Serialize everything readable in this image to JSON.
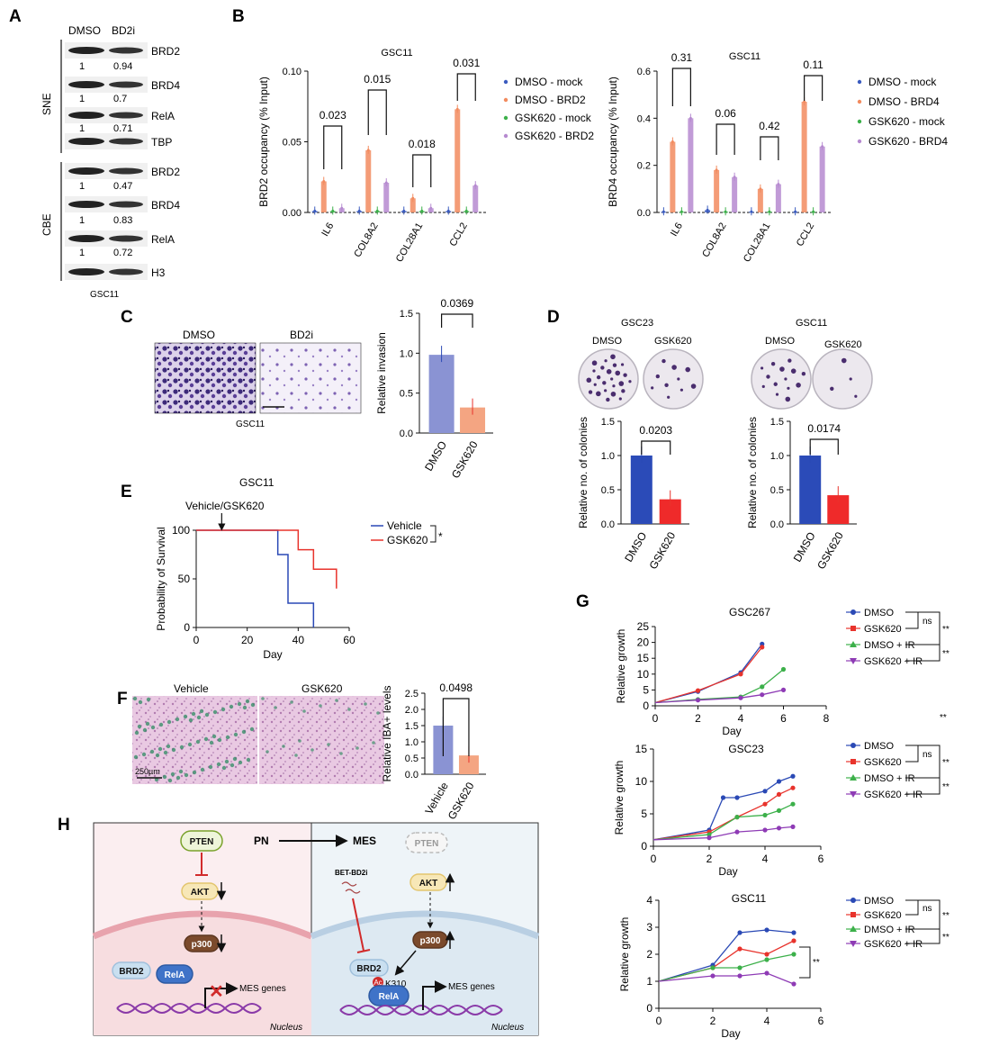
{
  "panel_labels": {
    "A": "A",
    "B": "B",
    "C": "C",
    "D": "D",
    "E": "E",
    "F": "F",
    "G": "G",
    "H": "H"
  },
  "panelA": {
    "conditions": [
      "DMSO",
      "BD2i"
    ],
    "sne_label": "SNE",
    "cbe_label": "CBE",
    "sne_proteins": [
      "BRD2",
      "BRD4",
      "RelA",
      "TBP"
    ],
    "sne_values": [
      [
        "1",
        "0.94"
      ],
      [
        "1",
        "0.7"
      ],
      [
        "1",
        "0.71"
      ]
    ],
    "cbe_proteins": [
      "BRD2",
      "BRD4",
      "RelA",
      "H3"
    ],
    "cbe_values": [
      [
        "1",
        "0.47"
      ],
      [
        "1",
        "0.83"
      ],
      [
        "1",
        "0.72"
      ]
    ],
    "cell_line": "GSC11"
  },
  "panelC": {
    "conditions": [
      "DMSO",
      "BD2i"
    ],
    "cell_line": "GSC11",
    "pvalue": "0.0369"
  },
  "panelD": {
    "left_title": "GSC23",
    "right_title": "GSC11",
    "conditions": [
      "DMSO",
      "GSK620"
    ],
    "left_pvalue": "0.0203",
    "right_pvalue": "0.0174"
  },
  "panelE": {
    "title": "GSC11",
    "arrow_label": "Vehicle/GSK620",
    "legend": [
      "Vehicle",
      "GSK620"
    ],
    "sig": "*"
  },
  "panelF": {
    "image_labels": [
      "Vehicle",
      "GSK620"
    ],
    "scalebar": "250µm",
    "pvalue": "0.0498"
  },
  "panelG": {
    "legend": [
      "DMSO",
      "GSK620",
      "DMSO + IR",
      "GSK620 + IR"
    ],
    "ns": "ns",
    "sig": "**"
  },
  "panelH": {
    "pn": "PN",
    "mes": "MES",
    "pten": "PTEN",
    "akt": "AKT",
    "p300": "p300",
    "brd2": "BRD2",
    "rela": "RelA",
    "bet": "BET-BD2i",
    "ac": "Ac",
    "k310": "K310",
    "mes_genes": "MES genes",
    "nucleus": "Nucleus"
  },
  "chart_data": [
    {
      "id": "B-left",
      "type": "bar",
      "title": "GSC11",
      "ylabel": "BRD2 occupancy (% Input)",
      "ylim": [
        0,
        0.1
      ],
      "yticks": [
        "0.00",
        "0.05",
        "0.10"
      ],
      "categories": [
        "IL6",
        "COL8A2",
        "COL28A1",
        "CCL2"
      ],
      "series": [
        {
          "name": "DMSO - mock",
          "color": "#3a5bbf",
          "values": [
            0.001,
            0.001,
            0.001,
            0.001
          ]
        },
        {
          "name": "DMSO - BRD2",
          "color": "#f28b5f",
          "values": [
            0.022,
            0.044,
            0.01,
            0.073
          ]
        },
        {
          "name": "GSK620 - mock",
          "color": "#3cb04a",
          "values": [
            0.001,
            0.001,
            0.001,
            0.001
          ]
        },
        {
          "name": "GSK620 - BRD2",
          "color": "#b68ad0",
          "values": [
            0.003,
            0.021,
            0.003,
            0.019
          ]
        }
      ],
      "pvalues": [
        "0.023",
        "0.015",
        "0.018",
        "0.031"
      ]
    },
    {
      "id": "B-right",
      "type": "bar",
      "title": "GSC11",
      "ylabel": "BRD4 occupancy (% Input)",
      "ylim": [
        0,
        0.6
      ],
      "yticks": [
        "0.0",
        "0.2",
        "0.4",
        "0.6"
      ],
      "categories": [
        "IL6",
        "COL8A2",
        "COL28A1",
        "CCL2"
      ],
      "series": [
        {
          "name": "DMSO - mock",
          "color": "#3a5bbf",
          "values": [
            0.003,
            0.01,
            0.003,
            0.003
          ]
        },
        {
          "name": "DMSO - BRD4",
          "color": "#f28b5f",
          "values": [
            0.3,
            0.18,
            0.1,
            0.47
          ]
        },
        {
          "name": "GSK620 - mock",
          "color": "#3cb04a",
          "values": [
            0.003,
            0.003,
            0.003,
            0.003
          ]
        },
        {
          "name": "GSK620 - BRD4",
          "color": "#b68ad0",
          "values": [
            0.4,
            0.15,
            0.12,
            0.28
          ]
        }
      ],
      "pvalues": [
        "0.31",
        "0.06",
        "0.42",
        "0.11"
      ]
    },
    {
      "id": "C-bar",
      "type": "bar",
      "ylabel": "Relative invasion",
      "ylim": [
        0,
        1.5
      ],
      "yticks": [
        "0.0",
        "0.5",
        "1.0",
        "1.5"
      ],
      "categories": [
        "DMSO",
        "GSK620"
      ],
      "values": [
        0.98,
        0.32
      ],
      "colors": [
        "#8a93d3",
        "#f4a582"
      ]
    },
    {
      "id": "D-left",
      "type": "bar",
      "ylabel": "Relative no. of colonies",
      "ylim": [
        0,
        1.5
      ],
      "yticks": [
        "0.0",
        "0.5",
        "1.0",
        "1.5"
      ],
      "categories": [
        "DMSO",
        "GSK620"
      ],
      "values": [
        1.0,
        0.36
      ],
      "colors": [
        "#2b4bb8",
        "#ef2a2a"
      ]
    },
    {
      "id": "D-right",
      "type": "bar",
      "ylabel": "Relative no. of colonies",
      "ylim": [
        0,
        1.5
      ],
      "yticks": [
        "0.0",
        "0.5",
        "1.0",
        "1.5"
      ],
      "categories": [
        "DMSO",
        "GSK620"
      ],
      "values": [
        1.0,
        0.42
      ],
      "colors": [
        "#2b4bb8",
        "#ef2a2a"
      ]
    },
    {
      "id": "E-survival",
      "type": "line",
      "xlabel": "Day",
      "ylabel": "Probability of Survival",
      "xlim": [
        0,
        60
      ],
      "ylim": [
        0,
        100
      ],
      "xticks": [
        "0",
        "20",
        "40",
        "60"
      ],
      "yticks": [
        "0",
        "50",
        "100"
      ],
      "series": [
        {
          "name": "Vehicle",
          "color": "#2a49b5",
          "x": [
            0,
            32,
            32,
            36,
            36,
            46,
            46
          ],
          "y": [
            100,
            100,
            75,
            75,
            25,
            25,
            0
          ]
        },
        {
          "name": "GSK620",
          "color": "#e8332c",
          "x": [
            0,
            40,
            40,
            46,
            46,
            55,
            55
          ],
          "y": [
            100,
            100,
            80,
            80,
            60,
            60,
            40
          ]
        }
      ]
    },
    {
      "id": "F-bar",
      "type": "bar",
      "ylabel": "Relative IBA+ levels",
      "ylim": [
        0,
        2.5
      ],
      "yticks": [
        "0.0",
        "0.5",
        "1.0",
        "1.5",
        "2.0",
        "2.5"
      ],
      "categories": [
        "Vehicle",
        "GSK620"
      ],
      "values": [
        1.5,
        0.58
      ],
      "colors": [
        "#8a93d3",
        "#f4a582"
      ]
    },
    {
      "id": "G-GSC267",
      "type": "line",
      "title": "GSC267",
      "xlabel": "Day",
      "ylabel": "Relative growth",
      "xlim": [
        0,
        8
      ],
      "ylim": [
        0,
        25
      ],
      "xticks": [
        "0",
        "2",
        "4",
        "6",
        "8"
      ],
      "yticks": [
        "0",
        "5",
        "10",
        "15",
        "20",
        "25"
      ],
      "series": [
        {
          "name": "DMSO",
          "color": "#2a49b5",
          "x": [
            0,
            2,
            4,
            5
          ],
          "y": [
            1,
            4.5,
            10.5,
            19.5
          ]
        },
        {
          "name": "GSK620",
          "color": "#e8332c",
          "x": [
            0,
            2,
            4,
            5
          ],
          "y": [
            1,
            4.8,
            10,
            18.5
          ]
        },
        {
          "name": "DMSO + IR",
          "color": "#3cb04a",
          "x": [
            0,
            2,
            4,
            5,
            6
          ],
          "y": [
            1,
            2,
            2.8,
            6,
            11.5
          ]
        },
        {
          "name": "GSK620 + IR",
          "color": "#8e3bb5",
          "x": [
            0,
            2,
            4,
            5,
            6
          ],
          "y": [
            1,
            1.8,
            2.5,
            3.5,
            5
          ]
        }
      ]
    },
    {
      "id": "G-GSC23",
      "type": "line",
      "title": "GSC23",
      "xlabel": "Day",
      "ylabel": "Relative growth",
      "xlim": [
        0,
        6
      ],
      "ylim": [
        0,
        15
      ],
      "xticks": [
        "0",
        "2",
        "4",
        "6"
      ],
      "yticks": [
        "0",
        "5",
        "10",
        "15"
      ],
      "series": [
        {
          "name": "DMSO",
          "color": "#2a49b5",
          "x": [
            0,
            2,
            2.5,
            3,
            4,
            4.5,
            5
          ],
          "y": [
            1,
            2.5,
            7.5,
            7.5,
            8.5,
            10,
            10.8
          ]
        },
        {
          "name": "GSK620",
          "color": "#e8332c",
          "x": [
            0,
            2,
            3,
            4,
            4.5,
            5
          ],
          "y": [
            1,
            2.2,
            4.5,
            6.5,
            8,
            9
          ]
        },
        {
          "name": "DMSO + IR",
          "color": "#3cb04a",
          "x": [
            0,
            2,
            3,
            4,
            4.5,
            5
          ],
          "y": [
            1,
            1.8,
            4.5,
            4.8,
            5.5,
            6.5
          ]
        },
        {
          "name": "GSK620 + IR",
          "color": "#8e3bb5",
          "x": [
            0,
            2,
            3,
            4,
            4.5,
            5
          ],
          "y": [
            1,
            1.3,
            2.2,
            2.5,
            2.8,
            3
          ]
        }
      ]
    },
    {
      "id": "G-GSC11",
      "type": "line",
      "title": "GSC11",
      "xlabel": "Day",
      "ylabel": "Relative growth",
      "xlim": [
        0,
        6
      ],
      "ylim": [
        0,
        4
      ],
      "xticks": [
        "0",
        "2",
        "4",
        "6"
      ],
      "yticks": [
        "0",
        "1",
        "2",
        "3",
        "4"
      ],
      "series": [
        {
          "name": "DMSO",
          "color": "#2a49b5",
          "x": [
            0,
            2,
            3,
            4,
            5
          ],
          "y": [
            1,
            1.6,
            2.8,
            2.9,
            2.8
          ]
        },
        {
          "name": "GSK620",
          "color": "#e8332c",
          "x": [
            0,
            2,
            3,
            4,
            5
          ],
          "y": [
            1,
            1.5,
            2.2,
            2.0,
            2.5
          ]
        },
        {
          "name": "DMSO + IR",
          "color": "#3cb04a",
          "x": [
            0,
            2,
            3,
            4,
            5
          ],
          "y": [
            1,
            1.5,
            1.5,
            1.8,
            2.0
          ]
        },
        {
          "name": "GSK620 + IR",
          "color": "#8e3bb5",
          "x": [
            0,
            2,
            3,
            4,
            5
          ],
          "y": [
            1,
            1.2,
            1.2,
            1.3,
            0.9
          ]
        }
      ]
    }
  ]
}
